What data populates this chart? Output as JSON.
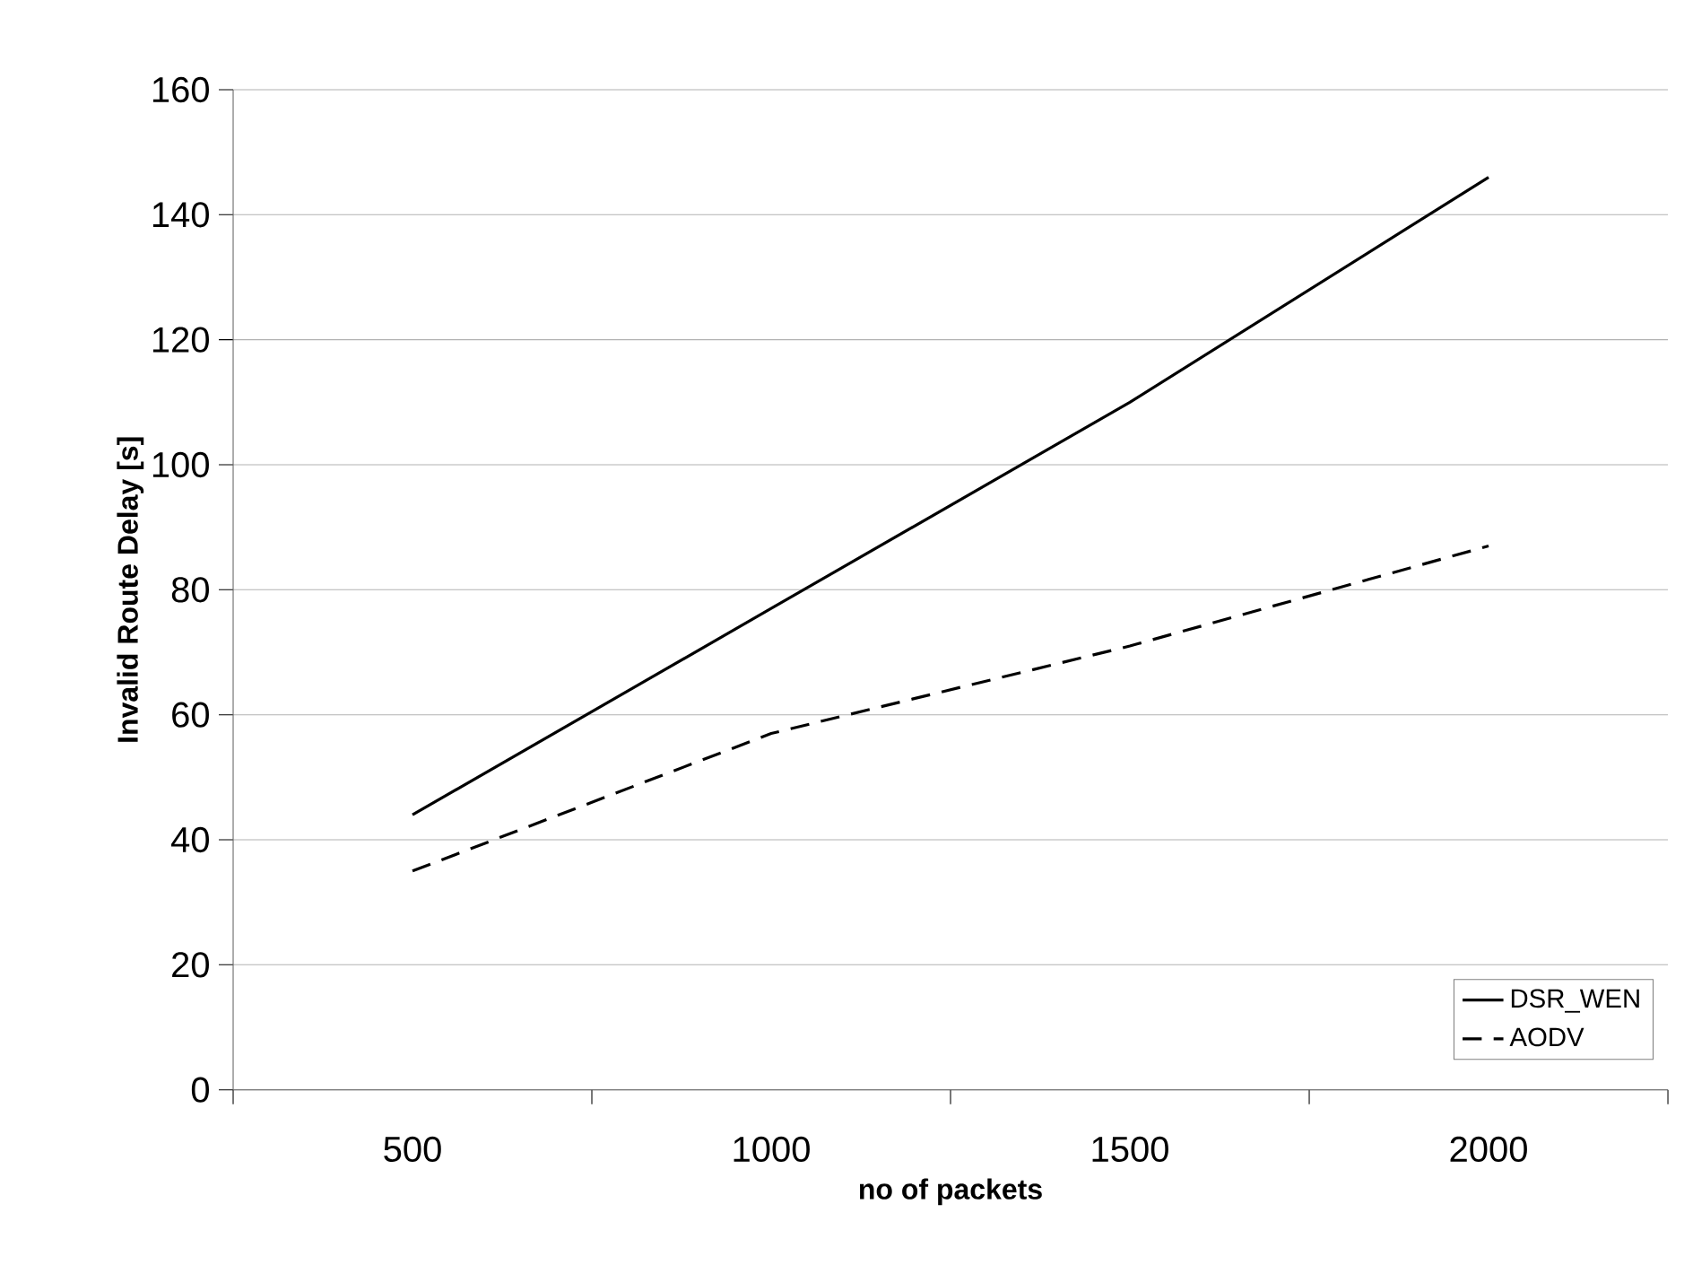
{
  "chart_data": {
    "type": "line",
    "xlabel": "no of packets",
    "ylabel": "Invalid Route Delay [s]",
    "categories": [
      "500",
      "1000",
      "1500",
      "2000"
    ],
    "series": [
      {
        "name": "DSR_WEN",
        "color": "#000000",
        "line_style": "solid",
        "values": [
          44,
          77,
          110,
          146
        ]
      },
      {
        "name": "AODV",
        "color": "#000000",
        "line_style": "dashed",
        "values": [
          35,
          57,
          71,
          87
        ]
      }
    ],
    "ylim": [
      0,
      160
    ],
    "yticks": [
      0,
      20,
      40,
      60,
      80,
      100,
      120,
      140,
      160
    ],
    "grid": "y",
    "legend": "bottom right"
  }
}
